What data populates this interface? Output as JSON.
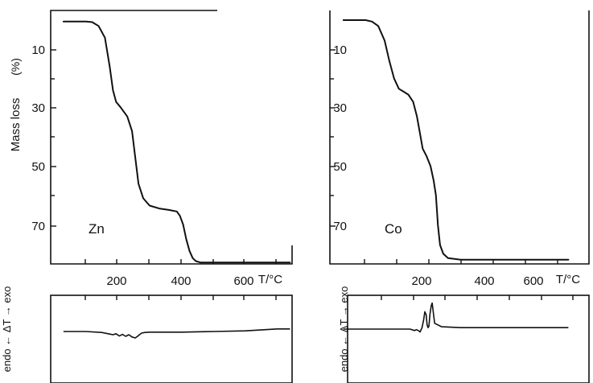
{
  "chart_data": [
    {
      "type": "line",
      "panel_label": "Zn",
      "ylabel": "Mass loss",
      "yunit": "(%)",
      "xlabel": "T/°C",
      "x_ticks": [
        "200",
        "400",
        "600"
      ],
      "y_ticks": [
        "10",
        "30",
        "50",
        "70"
      ],
      "xlim": [
        0,
        780
      ],
      "ylim": [
        0,
        85
      ],
      "y_inverted": true,
      "series": [
        {
          "x": [
            30,
            100,
            120,
            140,
            160,
            175,
            185,
            195,
            210,
            230,
            245,
            255,
            265,
            280,
            300,
            330,
            360,
            385,
            395,
            405,
            415,
            425,
            435,
            445,
            460,
            500,
            600,
            740
          ],
          "values": [
            0.5,
            0.5,
            0.7,
            2,
            6,
            16,
            24,
            28,
            30,
            33,
            38,
            47,
            56,
            61,
            63.5,
            64.5,
            65,
            65.5,
            67,
            70,
            75,
            79,
            81.5,
            82.5,
            83,
            83,
            83,
            83
          ]
        }
      ]
    },
    {
      "type": "line",
      "panel_label": "Co",
      "ylabel": "",
      "xlabel": "T/°C",
      "x_ticks": [
        "200",
        "400",
        "600"
      ],
      "y_ticks": [
        "10",
        "30",
        "50",
        "70"
      ],
      "xlim": [
        0,
        780
      ],
      "ylim": [
        0,
        85
      ],
      "y_inverted": true,
      "series": [
        {
          "x": [
            30,
            100,
            120,
            140,
            160,
            175,
            190,
            205,
            220,
            235,
            250,
            262,
            272,
            280,
            292,
            305,
            315,
            322,
            328,
            335,
            345,
            360,
            400,
            500,
            600,
            740
          ],
          "values": [
            0,
            0,
            0.5,
            2,
            7,
            14,
            20,
            23.5,
            24.5,
            25.5,
            28,
            33,
            39,
            44,
            46.5,
            50,
            55,
            60,
            70,
            77,
            80,
            81.5,
            82,
            82,
            82,
            82
          ]
        }
      ]
    },
    {
      "type": "line",
      "panel_label": "",
      "ylabel": "endo ← ΔT → exo",
      "xlabel": "",
      "x_ticks": [],
      "xlim": [
        0,
        780
      ],
      "ylim": [
        -1,
        1
      ],
      "series": [
        {
          "x": [
            30,
            100,
            150,
            175,
            185,
            195,
            205,
            215,
            225,
            235,
            245,
            255,
            262,
            268,
            275,
            285,
            300,
            400,
            500,
            600,
            700,
            740
          ],
          "values": [
            0,
            0,
            -0.03,
            -0.08,
            -0.1,
            -0.07,
            -0.14,
            -0.09,
            -0.15,
            -0.1,
            -0.17,
            -0.2,
            -0.15,
            -0.1,
            -0.05,
            -0.03,
            -0.02,
            -0.02,
            0,
            0.02,
            0.08,
            0.08
          ]
        }
      ]
    },
    {
      "type": "line",
      "panel_label": "",
      "ylabel": "endo ← ΔT → exo",
      "xlabel": "",
      "x_ticks": [],
      "xlim": [
        0,
        780
      ],
      "ylim": [
        -1,
        1
      ],
      "series": [
        {
          "x": [
            30,
            200,
            240,
            255,
            260,
            268,
            272,
            278,
            283,
            287,
            291,
            294,
            297,
            300,
            303,
            307,
            310,
            318,
            340,
            400,
            600,
            740
          ],
          "values": [
            0,
            0,
            0,
            -0.05,
            -0.02,
            -0.06,
            -0.1,
            0.05,
            0.3,
            0.6,
            0.5,
            0.15,
            0.05,
            0.1,
            0.5,
            0.8,
            0.9,
            0.2,
            0.08,
            0.05,
            0.05,
            0.05
          ]
        }
      ]
    }
  ]
}
